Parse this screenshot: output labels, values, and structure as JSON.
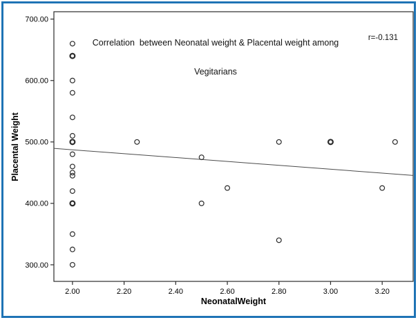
{
  "frame": {
    "border_color": "#1e73b5"
  },
  "chart_data": {
    "type": "scatter",
    "title_line1": "Correlation  between Neonatal weight & Placental weight among",
    "title_line2": "Vegitarians",
    "annotation": "r=-0.131",
    "xlabel": "NeonatalWeight",
    "ylabel": "Placental Weight",
    "xlim": [
      1.928,
      3.32
    ],
    "ylim": [
      273,
      712
    ],
    "x_ticks": [
      {
        "value": 2.0,
        "label": "2.00"
      },
      {
        "value": 2.2,
        "label": "2.20"
      },
      {
        "value": 2.4,
        "label": "2.40"
      },
      {
        "value": 2.6,
        "label": "2.60"
      },
      {
        "value": 2.8,
        "label": "2.80"
      },
      {
        "value": 3.0,
        "label": "3.00"
      },
      {
        "value": 3.2,
        "label": "3.20"
      }
    ],
    "y_ticks": [
      {
        "value": 300,
        "label": "300.00"
      },
      {
        "value": 400,
        "label": "400.00"
      },
      {
        "value": 500,
        "label": "500.00"
      },
      {
        "value": 600,
        "label": "600.00"
      },
      {
        "value": 700,
        "label": "700.00"
      }
    ],
    "points": [
      {
        "x": 2.0,
        "y": 660,
        "bold": false
      },
      {
        "x": 2.0,
        "y": 640,
        "bold": true
      },
      {
        "x": 2.0,
        "y": 600,
        "bold": false
      },
      {
        "x": 2.0,
        "y": 580,
        "bold": false
      },
      {
        "x": 2.0,
        "y": 540,
        "bold": false
      },
      {
        "x": 2.0,
        "y": 510,
        "bold": false
      },
      {
        "x": 2.0,
        "y": 500,
        "bold": true
      },
      {
        "x": 2.0,
        "y": 480,
        "bold": false
      },
      {
        "x": 2.0,
        "y": 460,
        "bold": false
      },
      {
        "x": 2.0,
        "y": 450,
        "bold": false
      },
      {
        "x": 2.0,
        "y": 445,
        "bold": false
      },
      {
        "x": 2.0,
        "y": 420,
        "bold": false
      },
      {
        "x": 2.0,
        "y": 400,
        "bold": true
      },
      {
        "x": 2.0,
        "y": 350,
        "bold": false
      },
      {
        "x": 2.0,
        "y": 325,
        "bold": false
      },
      {
        "x": 2.0,
        "y": 300,
        "bold": false
      },
      {
        "x": 2.25,
        "y": 500,
        "bold": false
      },
      {
        "x": 2.5,
        "y": 475,
        "bold": false
      },
      {
        "x": 2.5,
        "y": 400,
        "bold": false
      },
      {
        "x": 2.6,
        "y": 425,
        "bold": false
      },
      {
        "x": 2.8,
        "y": 500,
        "bold": false
      },
      {
        "x": 2.8,
        "y": 340,
        "bold": false
      },
      {
        "x": 3.0,
        "y": 500,
        "bold": true
      },
      {
        "x": 3.2,
        "y": 425,
        "bold": false
      },
      {
        "x": 3.25,
        "y": 500,
        "bold": false
      }
    ],
    "regression_line": {
      "x1": 1.928,
      "y1": 489.5,
      "x2": 3.32,
      "y2": 445.5
    },
    "marker": {
      "radius": 3.4,
      "stroke": "#2b2b2b",
      "stroke_width": 1.2,
      "bold_stroke_width": 2.2
    },
    "axis_color": "#2b2b2b",
    "line_color": "#4a4a4a",
    "grid": false,
    "legend": null
  }
}
